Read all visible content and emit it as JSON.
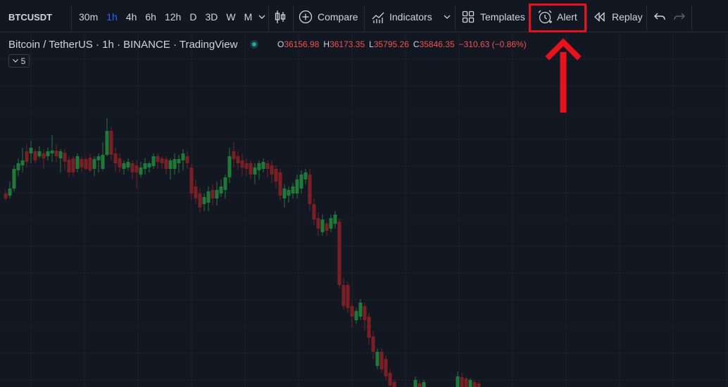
{
  "toolbar": {
    "symbol": "BTCUSDT",
    "intervals": [
      "30m",
      "1h",
      "4h",
      "6h",
      "12h",
      "D",
      "3D",
      "W",
      "M"
    ],
    "active_interval": "1h",
    "compare_label": "Compare",
    "indicators_label": "Indicators",
    "templates_label": "Templates",
    "alert_label": "Alert",
    "replay_label": "Replay"
  },
  "legend": {
    "title": "Bitcoin / TetherUS · 1h · BINANCE · TradingView",
    "open_key": "O",
    "open": "36156.98",
    "high_key": "H",
    "high": "36173.35",
    "low_key": "L",
    "low": "35795.26",
    "close_key": "C",
    "close": "35846.35",
    "change": "−310.63 (−0.86%)",
    "collapsed_count": "5"
  },
  "colors": {
    "background": "#131722",
    "up": "#26a69a",
    "down": "#ef5350",
    "up_candle": "#1f7a3a",
    "down_candle": "#7a1f24",
    "accent": "#2962ff",
    "annotation": "#e8111c"
  },
  "annotation": {
    "target": "alert-button",
    "shape": "box-with-arrow"
  }
}
